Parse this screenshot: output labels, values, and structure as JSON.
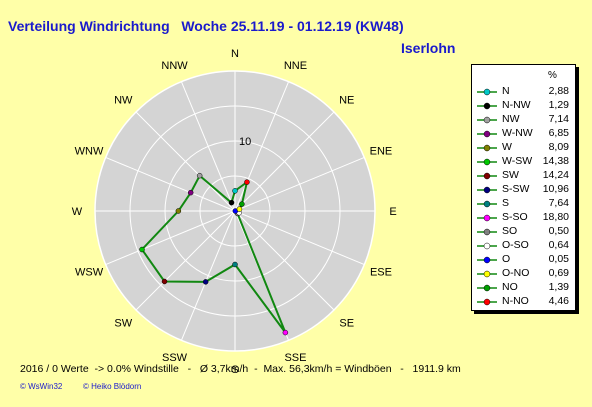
{
  "header": {
    "title": "Verteilung Windrichtung   Woche 25.11.19 - 01.12.19 (KW48)",
    "station": "Iserlohn"
  },
  "legend": {
    "unit": "%"
  },
  "footer": {
    "text": "2016 / 0 Werte  -> 0.0% Windstille   -   Ø 3,7km/h  -  Max. 56,3km/h = Windböen   -   1911.9 km",
    "credit_left": "© WsWin32",
    "credit_right": "© Heiko Blödorn"
  },
  "chart_data": {
    "type": "radar",
    "ring_label": "10",
    "rmax": 20,
    "ring_step": 5,
    "axis_labels": [
      "N",
      "NNE",
      "NE",
      "ENE",
      "E",
      "ESE",
      "SE",
      "SSE",
      "S",
      "SSW",
      "SW",
      "WSW",
      "W",
      "WNW",
      "NW",
      "NNW"
    ],
    "line_color": "#118811",
    "series": [
      {
        "name": "N",
        "value": 2.88,
        "color": "#00c8c8"
      },
      {
        "name": "N-NW",
        "value": 1.29,
        "color": "#000000"
      },
      {
        "name": "NW",
        "value": 7.14,
        "color": "#a0a0a0"
      },
      {
        "name": "W-NW",
        "value": 6.85,
        "color": "#800080"
      },
      {
        "name": "W",
        "value": 8.09,
        "color": "#808000"
      },
      {
        "name": "W-SW",
        "value": 14.38,
        "color": "#00c800"
      },
      {
        "name": "SW",
        "value": 14.24,
        "color": "#800000"
      },
      {
        "name": "S-SW",
        "value": 10.96,
        "color": "#000080"
      },
      {
        "name": "S",
        "value": 7.64,
        "color": "#008080"
      },
      {
        "name": "S-SO",
        "value": 18.8,
        "color": "#ff00ff"
      },
      {
        "name": "SO",
        "value": 0.5,
        "color": "#808080"
      },
      {
        "name": "O-SO",
        "value": 0.64,
        "color": "#ffffff"
      },
      {
        "name": "O",
        "value": 0.05,
        "color": "#0000ff"
      },
      {
        "name": "O-NO",
        "value": 0.69,
        "color": "#ffff00"
      },
      {
        "name": "NO",
        "value": 1.39,
        "color": "#00a000"
      },
      {
        "name": "N-NO",
        "value": 4.46,
        "color": "#ff0000"
      }
    ]
  }
}
